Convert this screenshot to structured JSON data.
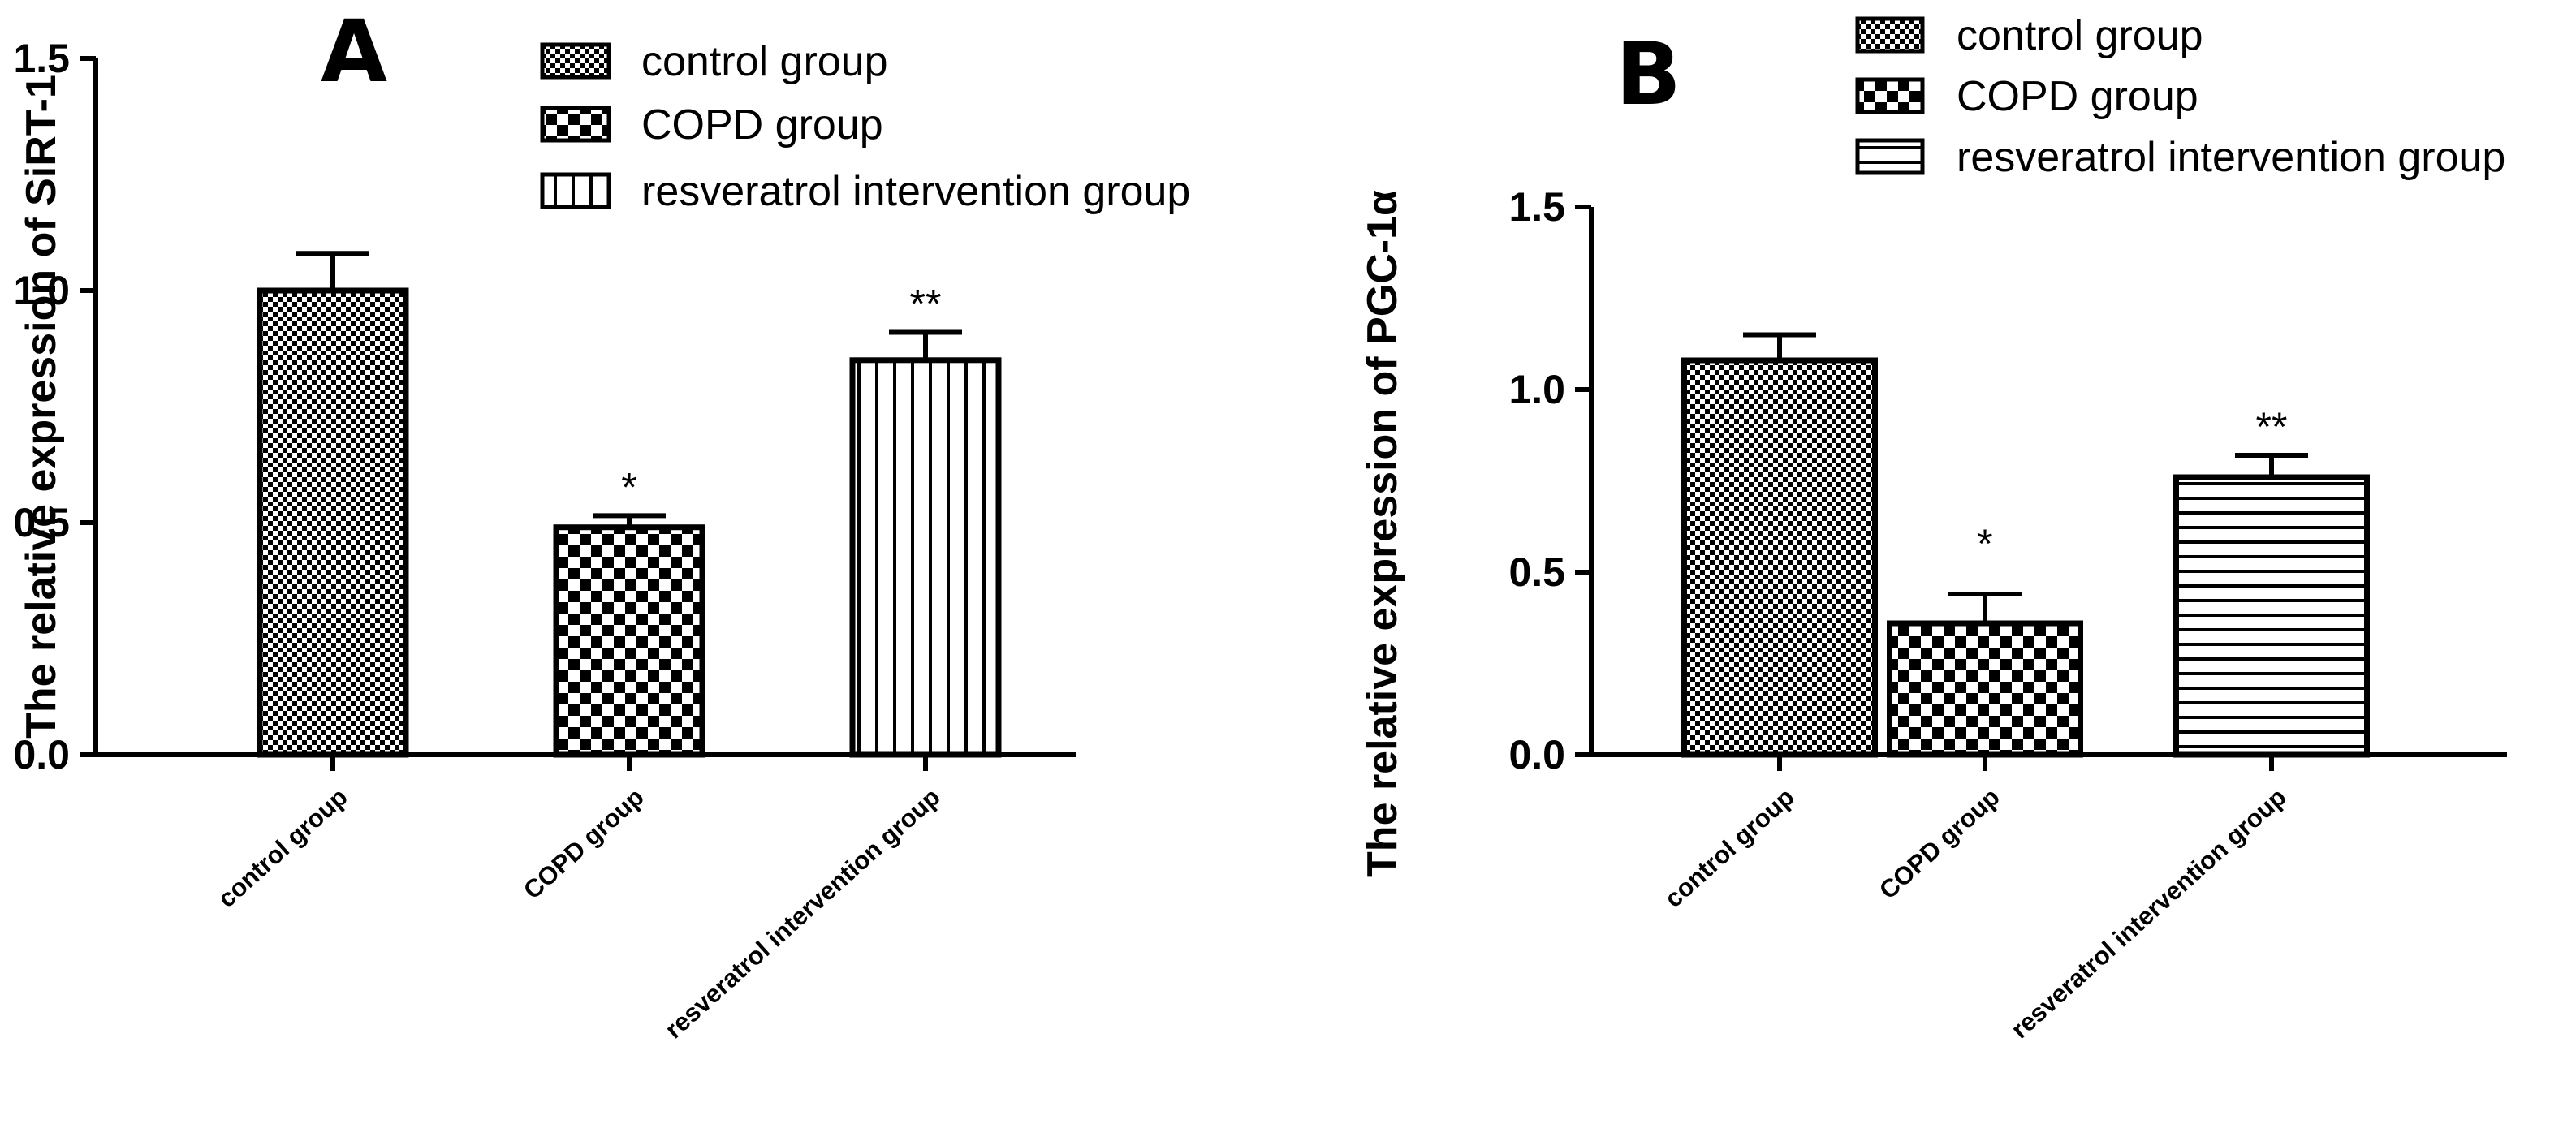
{
  "chart_data": [
    {
      "type": "bar",
      "panel": "A",
      "ylabel": "The  relative  expression  of  SiRT-1",
      "categories": [
        "control group",
        "COPD group",
        "resveratrol intervention group"
      ],
      "values": [
        1.0,
        0.49,
        0.85
      ],
      "errors": [
        0.08,
        0.025,
        0.06
      ],
      "significance": [
        "",
        "*",
        "**"
      ],
      "patterns": [
        "fine-check",
        "check",
        "vertical"
      ],
      "ylim": [
        0,
        1.5
      ],
      "yticks": [
        0.0,
        0.5,
        1.0,
        1.5
      ],
      "ytick_labels": [
        "0.0",
        "0.5",
        "1.0",
        "1.5"
      ],
      "legend": [
        "control group",
        "COPD group",
        "resveratrol intervention group"
      ]
    },
    {
      "type": "bar",
      "panel": "B",
      "ylabel": "The relative expression of  PGC-1α",
      "categories": [
        "control group",
        "COPD group",
        "resveratrol intervention group"
      ],
      "values": [
        1.08,
        0.36,
        0.76
      ],
      "errors": [
        0.07,
        0.08,
        0.06
      ],
      "significance": [
        "",
        "*",
        "**"
      ],
      "patterns": [
        "fine-check",
        "check",
        "horizontal"
      ],
      "ylim": [
        0,
        1.5
      ],
      "yticks": [
        0.0,
        0.5,
        1.0,
        1.5
      ],
      "ytick_labels": [
        "0.0",
        "0.5",
        "1.0",
        "1.5"
      ],
      "legend": [
        "control group",
        "COPD group",
        "resveratrol intervention group"
      ]
    }
  ]
}
